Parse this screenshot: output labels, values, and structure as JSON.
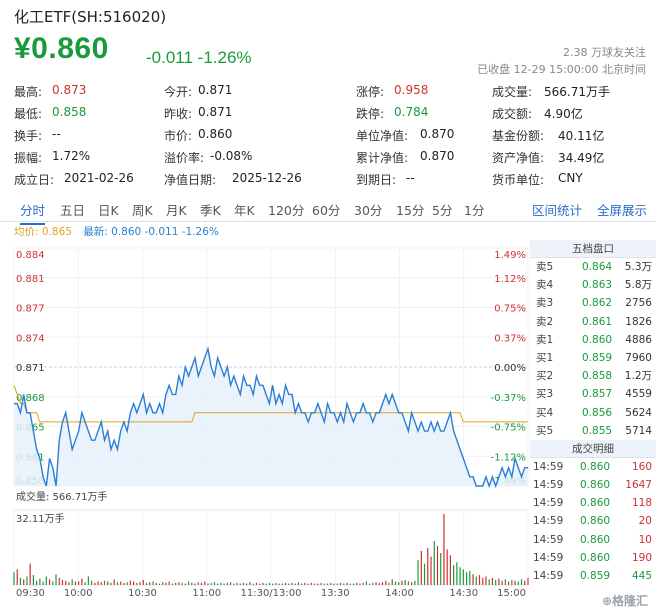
{
  "header": {
    "title": "化工ETF(SH:516020)",
    "price": "¥0.860",
    "change": "-0.011 -1.26%",
    "followers": "2.38 万球友关注",
    "status": "已收盘 12-29 15:00:00 北京时间"
  },
  "stats": [
    [
      {
        "label": "最高:",
        "value": "0.873",
        "color": "red"
      },
      {
        "label": "今开:",
        "value": "0.871",
        "color": "none"
      },
      {
        "label": "涨停:",
        "value": "0.958",
        "color": "red"
      },
      {
        "label": "成交量:",
        "value": "566.71万手",
        "color": "none"
      }
    ],
    [
      {
        "label": "最低:",
        "value": "0.858",
        "color": "green"
      },
      {
        "label": "昨收:",
        "value": "0.871",
        "color": "none"
      },
      {
        "label": "跌停:",
        "value": "0.784",
        "color": "green"
      },
      {
        "label": "成交额:",
        "value": "4.90亿",
        "color": "none"
      }
    ],
    [
      {
        "label": "换手:",
        "value": "--",
        "color": "none"
      },
      {
        "label": "市价:",
        "value": "0.860",
        "color": "none"
      },
      {
        "label": "单位净值:",
        "value": "0.870",
        "color": "none"
      },
      {
        "label": "基金份额:",
        "value": "40.11亿",
        "color": "none"
      }
    ],
    [
      {
        "label": "振幅:",
        "value": "1.72%",
        "color": "none"
      },
      {
        "label": "溢价率:",
        "value": "-0.08%",
        "color": "none"
      },
      {
        "label": "累计净值:",
        "value": "0.870",
        "color": "none"
      },
      {
        "label": "资产净值:",
        "value": "34.49亿",
        "color": "none"
      }
    ],
    [
      {
        "label": "成立日:",
        "value": "2021-02-26",
        "color": "none"
      },
      {
        "label": "净值日期:",
        "value": "2025-12-26",
        "color": "none"
      },
      {
        "label": "到期日:",
        "value": "--",
        "color": "none"
      },
      {
        "label": "货币单位:",
        "value": "CNY",
        "color": "none"
      }
    ]
  ],
  "tabs": [
    "分时",
    "五日",
    "日K",
    "周K",
    "月K",
    "季K",
    "年K",
    "120分",
    "60分",
    "30分",
    "15分",
    "5分",
    "1分"
  ],
  "active_tab": 0,
  "right_links": [
    "区间统计",
    "全屏展示"
  ],
  "legend": {
    "avg": "均价: 0.865",
    "last": "最新: 0.860 -0.011 -1.26%"
  },
  "colors": {
    "up": "#d03030",
    "down": "#1a9a3c",
    "price_line": "#2a7fd4",
    "avg_line": "#e0a020",
    "link": "#2a6cc7"
  },
  "order_book": {
    "title": "五档盘口",
    "rows": [
      {
        "side": "卖5",
        "price": "0.864",
        "vol": "5.3万"
      },
      {
        "side": "卖4",
        "price": "0.863",
        "vol": "5.8万"
      },
      {
        "side": "卖3",
        "price": "0.862",
        "vol": "2756"
      },
      {
        "side": "卖2",
        "price": "0.861",
        "vol": "1826"
      },
      {
        "side": "卖1",
        "price": "0.860",
        "vol": "4886"
      },
      {
        "side": "买1",
        "price": "0.859",
        "vol": "7960"
      },
      {
        "side": "买2",
        "price": "0.858",
        "vol": "1.2万"
      },
      {
        "side": "买3",
        "price": "0.857",
        "vol": "4559"
      },
      {
        "side": "买4",
        "price": "0.856",
        "vol": "5624"
      },
      {
        "side": "买5",
        "price": "0.855",
        "vol": "5714"
      }
    ],
    "trades_title": "成交明细",
    "trades": [
      {
        "time": "14:59",
        "price": "0.860",
        "vol": "160",
        "color": "red"
      },
      {
        "time": "14:59",
        "price": "0.860",
        "vol": "1647",
        "color": "red"
      },
      {
        "time": "14:59",
        "price": "0.860",
        "vol": "118",
        "color": "red"
      },
      {
        "time": "14:59",
        "price": "0.860",
        "vol": "20",
        "color": "red"
      },
      {
        "time": "14:59",
        "price": "0.860",
        "vol": "10",
        "color": "red"
      },
      {
        "time": "14:59",
        "price": "0.860",
        "vol": "190",
        "color": "red"
      },
      {
        "time": "14:59",
        "price": "0.859",
        "vol": "445",
        "color": "green"
      }
    ]
  },
  "volume_label": "成交量: 566.71万手",
  "volume_max_label": "32.11万手",
  "chart_data": {
    "type": "line",
    "price_ticks": [
      "0.884",
      "0.881",
      "0.877",
      "0.874",
      "0.871",
      "0.868",
      "0.865",
      "0.861",
      "0.858"
    ],
    "pct_ticks": [
      "1.49%",
      "1.12%",
      "0.75%",
      "0.37%",
      "0.00%",
      "-0.37%",
      "-0.75%",
      "-1.12%",
      "-1.49%"
    ],
    "time_ticks": [
      "09:30",
      "10:00",
      "10:30",
      "11:00",
      "11:30/13:00",
      "13:30",
      "14:00",
      "14:30",
      "15:00"
    ],
    "ylim": [
      0.858,
      0.884
    ],
    "prev_close": 0.871,
    "series": [
      {
        "name": "最新",
        "values": [
          0.867,
          0.867,
          0.866,
          0.868,
          0.866,
          0.866,
          0.864,
          0.862,
          0.861,
          0.859,
          0.858,
          0.861,
          0.86,
          0.858,
          0.863,
          0.865,
          0.866,
          0.864,
          0.862,
          0.863,
          0.864,
          0.866,
          0.865,
          0.864,
          0.863,
          0.863,
          0.864,
          0.865,
          0.863,
          0.864,
          0.862,
          0.863,
          0.862,
          0.864,
          0.865,
          0.864,
          0.866,
          0.867,
          0.866,
          0.867,
          0.868,
          0.866,
          0.867,
          0.866,
          0.866,
          0.867,
          0.866,
          0.868,
          0.869,
          0.868,
          0.868,
          0.87,
          0.869,
          0.871,
          0.87,
          0.871,
          0.872,
          0.87,
          0.871,
          0.872,
          0.873,
          0.871,
          0.87,
          0.872,
          0.871,
          0.87,
          0.871,
          0.869,
          0.87,
          0.869,
          0.868,
          0.87,
          0.869,
          0.869,
          0.868,
          0.87,
          0.869,
          0.869,
          0.868,
          0.867,
          0.869,
          0.867,
          0.868,
          0.867,
          0.869,
          0.868,
          0.868,
          0.866,
          0.867,
          0.866,
          0.866,
          0.865,
          0.866,
          0.866,
          0.867,
          0.866,
          0.865,
          0.867,
          0.866,
          0.866,
          0.865,
          0.866,
          0.865,
          0.867,
          0.866,
          0.865,
          0.866,
          0.866,
          0.867,
          0.866,
          0.866,
          0.865,
          0.866,
          0.866,
          0.867,
          0.868,
          0.867,
          0.868,
          0.867,
          0.866,
          0.866,
          0.865,
          0.864,
          0.866,
          0.865,
          0.864,
          0.865,
          0.864,
          0.864,
          0.865,
          0.864,
          0.865,
          0.864,
          0.864,
          0.865,
          0.866,
          0.864,
          0.863,
          0.862,
          0.861,
          0.86,
          0.859,
          0.859,
          0.858,
          0.858,
          0.858,
          0.859,
          0.858,
          0.859,
          0.858,
          0.859,
          0.86,
          0.859,
          0.86,
          0.859,
          0.861,
          0.86,
          0.859,
          0.86,
          0.86
        ]
      },
      {
        "name": "均价",
        "values": [
          0.869,
          0.868,
          0.867,
          0.867,
          0.866,
          0.866,
          0.866,
          0.866,
          0.865,
          0.865,
          0.865,
          0.865,
          0.865,
          0.865,
          0.865,
          0.865,
          0.865,
          0.865,
          0.865,
          0.865,
          0.865,
          0.865,
          0.865,
          0.865,
          0.865,
          0.865,
          0.865,
          0.865,
          0.865,
          0.865,
          0.865,
          0.865,
          0.865,
          0.865,
          0.865,
          0.865,
          0.865,
          0.865,
          0.865,
          0.865,
          0.865,
          0.865,
          0.865,
          0.865,
          0.865,
          0.865,
          0.865,
          0.865,
          0.865,
          0.865,
          0.865,
          0.865,
          0.865,
          0.865,
          0.865,
          0.865,
          0.866,
          0.866,
          0.866,
          0.866,
          0.866,
          0.866,
          0.866,
          0.866,
          0.866,
          0.866,
          0.866,
          0.866,
          0.866,
          0.866,
          0.866,
          0.866,
          0.866,
          0.866,
          0.866,
          0.866,
          0.866,
          0.866,
          0.866,
          0.866,
          0.866,
          0.866,
          0.866,
          0.866,
          0.866,
          0.866,
          0.866,
          0.866,
          0.866,
          0.866,
          0.866,
          0.866,
          0.866,
          0.866,
          0.866,
          0.866,
          0.866,
          0.866,
          0.866,
          0.866,
          0.866,
          0.866,
          0.866,
          0.866,
          0.866,
          0.866,
          0.866,
          0.866,
          0.866,
          0.866,
          0.866,
          0.866,
          0.866,
          0.866,
          0.866,
          0.866,
          0.866,
          0.866,
          0.866,
          0.866,
          0.866,
          0.866,
          0.866,
          0.866,
          0.866,
          0.866,
          0.866,
          0.866,
          0.866,
          0.866,
          0.866,
          0.866,
          0.866,
          0.866,
          0.866,
          0.866,
          0.866,
          0.866,
          0.866,
          0.865,
          0.865,
          0.865,
          0.865,
          0.865,
          0.865,
          0.865,
          0.865,
          0.865,
          0.865,
          0.865,
          0.865,
          0.865,
          0.865,
          0.865,
          0.865,
          0.865,
          0.865,
          0.865,
          0.865,
          0.865
        ]
      }
    ],
    "volume_series": [
      0.18,
      0.22,
      0.1,
      0.08,
      0.12,
      0.3,
      0.14,
      0.06,
      0.09,
      0.05,
      0.12,
      0.08,
      0.05,
      0.15,
      0.1,
      0.07,
      0.06,
      0.04,
      0.08,
      0.05,
      0.05,
      0.09,
      0.04,
      0.12,
      0.06,
      0.03,
      0.05,
      0.04,
      0.06,
      0.05,
      0.03,
      0.08,
      0.04,
      0.05,
      0.03,
      0.04,
      0.06,
      0.05,
      0.03,
      0.04,
      0.07,
      0.03,
      0.04,
      0.05,
      0.03,
      0.02,
      0.04,
      0.03,
      0.05,
      0.02,
      0.03,
      0.04,
      0.03,
      0.02,
      0.05,
      0.03,
      0.02,
      0.04,
      0.03,
      0.05,
      0.02,
      0.03,
      0.04,
      0.02,
      0.03,
      0.02,
      0.03,
      0.04,
      0.02,
      0.03,
      0.02,
      0.03,
      0.02,
      0.04,
      0.02,
      0.03,
      0.02,
      0.03,
      0.02,
      0.03,
      0.02,
      0.03,
      0.02,
      0.02,
      0.03,
      0.02,
      0.03,
      0.02,
      0.04,
      0.02,
      0.03,
      0.02,
      0.03,
      0.02,
      0.02,
      0.03,
      0.02,
      0.02,
      0.03,
      0.02,
      0.02,
      0.03,
      0.02,
      0.03,
      0.02,
      0.02,
      0.03,
      0.02,
      0.03,
      0.05,
      0.02,
      0.03,
      0.04,
      0.03,
      0.04,
      0.06,
      0.03,
      0.08,
      0.05,
      0.04,
      0.06,
      0.07,
      0.05,
      0.04,
      0.06,
      0.35,
      0.48,
      0.3,
      0.52,
      0.4,
      0.62,
      0.55,
      0.45,
      1.0,
      0.5,
      0.42,
      0.28,
      0.32,
      0.25,
      0.22,
      0.18,
      0.2,
      0.15,
      0.12,
      0.14,
      0.1,
      0.12,
      0.08,
      0.1,
      0.07,
      0.09,
      0.06,
      0.08,
      0.05,
      0.07,
      0.06,
      0.05,
      0.08,
      0.06,
      0.1,
      0.08
    ]
  }
}
